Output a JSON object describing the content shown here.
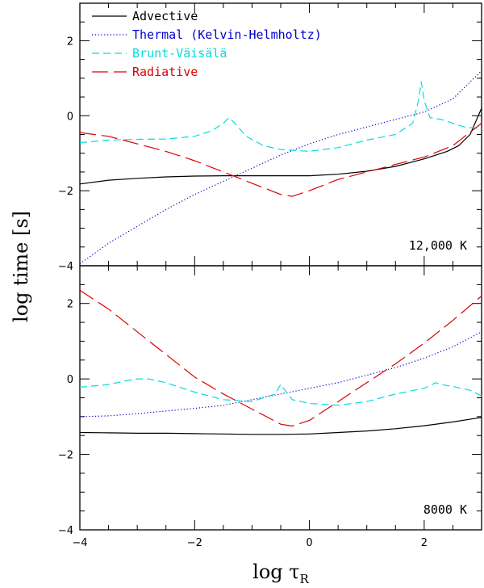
{
  "chart_data": [
    {
      "type": "line",
      "annotation": "12,000 K",
      "xlim": [
        -4,
        3
      ],
      "ylim": [
        -4,
        3
      ],
      "x_ticks": [
        -4,
        -2,
        0,
        2
      ],
      "y_ticks": [
        -4,
        -2,
        0,
        2
      ],
      "y_tick_labels": [
        "−4",
        "−2",
        "0",
        "2"
      ],
      "legend_position": "top-left",
      "series": [
        {
          "name": "Advective",
          "color": "#000000",
          "style": "solid",
          "x": [
            -4.0,
            -3.5,
            -3.0,
            -2.5,
            -2.0,
            -1.5,
            -1.0,
            -0.5,
            0.0,
            0.5,
            1.0,
            1.5,
            2.0,
            2.4,
            2.6,
            2.8,
            3.0
          ],
          "y": [
            -1.82,
            -1.72,
            -1.67,
            -1.63,
            -1.61,
            -1.6,
            -1.6,
            -1.6,
            -1.6,
            -1.56,
            -1.48,
            -1.35,
            -1.15,
            -0.95,
            -0.8,
            -0.5,
            0.2
          ]
        },
        {
          "name": "Thermal (Kelvin-Helmholtz)",
          "color": "#0000cc",
          "style": "dotted",
          "x": [
            -4.0,
            -3.5,
            -3.0,
            -2.5,
            -2.0,
            -1.5,
            -1.0,
            -0.5,
            0.0,
            0.5,
            1.0,
            1.5,
            2.0,
            2.5,
            3.0
          ],
          "y": [
            -3.95,
            -3.4,
            -2.95,
            -2.5,
            -2.1,
            -1.75,
            -1.4,
            -1.05,
            -0.75,
            -0.5,
            -0.3,
            -0.1,
            0.1,
            0.45,
            1.2
          ]
        },
        {
          "name": "Brunt-Väisälä",
          "color": "#00dddd",
          "style": "short-dash",
          "x": [
            -4.0,
            -3.5,
            -3.0,
            -2.5,
            -2.0,
            -1.7,
            -1.5,
            -1.4,
            -1.3,
            -1.1,
            -0.8,
            -0.5,
            0.0,
            0.5,
            1.0,
            1.5,
            1.8,
            1.9,
            1.95,
            2.0,
            2.1,
            2.3,
            2.5,
            2.7,
            3.0
          ],
          "y": [
            -0.72,
            -0.65,
            -0.63,
            -0.62,
            -0.55,
            -0.4,
            -0.2,
            -0.05,
            -0.2,
            -0.55,
            -0.8,
            -0.9,
            -0.95,
            -0.85,
            -0.65,
            -0.5,
            -0.2,
            0.4,
            0.9,
            0.4,
            -0.05,
            -0.1,
            -0.2,
            -0.3,
            -0.35
          ]
        },
        {
          "name": "Radiative",
          "color": "#dd0000",
          "style": "long-dash",
          "x": [
            -4.0,
            -3.5,
            -3.0,
            -2.5,
            -2.0,
            -1.5,
            -1.0,
            -0.5,
            -0.3,
            0.0,
            0.5,
            1.0,
            1.5,
            2.0,
            2.5,
            3.0
          ],
          "y": [
            -0.45,
            -0.55,
            -0.75,
            -0.95,
            -1.2,
            -1.5,
            -1.8,
            -2.1,
            -2.15,
            -2.0,
            -1.7,
            -1.5,
            -1.3,
            -1.1,
            -0.8,
            -0.2
          ]
        }
      ]
    },
    {
      "type": "line",
      "annotation": "8000 K",
      "xlim": [
        -4,
        3
      ],
      "ylim": [
        -4,
        3
      ],
      "x_ticks": [
        -4,
        -2,
        0,
        2
      ],
      "x_tick_labels": [
        "−4",
        "−2",
        "0",
        "2"
      ],
      "y_ticks": [
        -4,
        -2,
        0,
        2
      ],
      "y_tick_labels": [
        "−4",
        "−2",
        "0",
        "2"
      ],
      "xlabel": "log τ",
      "xlabel_sub": "R",
      "series": [
        {
          "name": "Advective",
          "color": "#000000",
          "style": "solid",
          "x": [
            -4.0,
            -3.5,
            -3.0,
            -2.5,
            -2.0,
            -1.5,
            -1.0,
            -0.5,
            0.0,
            0.5,
            1.0,
            1.5,
            2.0,
            2.5,
            3.0
          ],
          "y": [
            -1.42,
            -1.43,
            -1.44,
            -1.44,
            -1.45,
            -1.46,
            -1.47,
            -1.47,
            -1.46,
            -1.42,
            -1.38,
            -1.32,
            -1.24,
            -1.14,
            -1.02
          ]
        },
        {
          "name": "Thermal (Kelvin-Helmholtz)",
          "color": "#0000cc",
          "style": "dotted",
          "x": [
            -4.0,
            -3.5,
            -3.0,
            -2.5,
            -2.0,
            -1.5,
            -1.0,
            -0.5,
            0.0,
            0.5,
            1.0,
            1.5,
            2.0,
            2.5,
            3.0
          ],
          "y": [
            -1.0,
            -0.98,
            -0.92,
            -0.85,
            -0.78,
            -0.7,
            -0.55,
            -0.4,
            -0.25,
            -0.1,
            0.1,
            0.3,
            0.55,
            0.85,
            1.25
          ]
        },
        {
          "name": "Brunt-Väisälä",
          "color": "#00dddd",
          "style": "short-dash",
          "x": [
            -4.0,
            -3.5,
            -3.2,
            -3.0,
            -2.8,
            -2.5,
            -2.0,
            -1.5,
            -1.0,
            -0.6,
            -0.5,
            -0.4,
            -0.3,
            0.0,
            0.5,
            1.0,
            1.5,
            2.0,
            2.2,
            2.3,
            2.5,
            2.8,
            3.0
          ],
          "y": [
            -0.22,
            -0.15,
            -0.05,
            0.0,
            0.0,
            -0.1,
            -0.35,
            -0.55,
            -0.6,
            -0.4,
            -0.15,
            -0.35,
            -0.55,
            -0.65,
            -0.7,
            -0.6,
            -0.4,
            -0.25,
            -0.1,
            -0.15,
            -0.2,
            -0.3,
            -0.45
          ]
        },
        {
          "name": "Radiative",
          "color": "#dd0000",
          "style": "long-dash",
          "x": [
            -4.0,
            -3.5,
            -3.0,
            -2.5,
            -2.0,
            -1.5,
            -1.0,
            -0.5,
            -0.3,
            0.0,
            0.5,
            1.0,
            1.5,
            2.0,
            2.5,
            3.0
          ],
          "y": [
            2.35,
            1.85,
            1.25,
            0.65,
            0.05,
            -0.4,
            -0.8,
            -1.2,
            -1.25,
            -1.1,
            -0.6,
            -0.1,
            0.4,
            0.95,
            1.55,
            2.2
          ]
        }
      ]
    }
  ],
  "shared": {
    "ylabel": "log time [s]"
  }
}
